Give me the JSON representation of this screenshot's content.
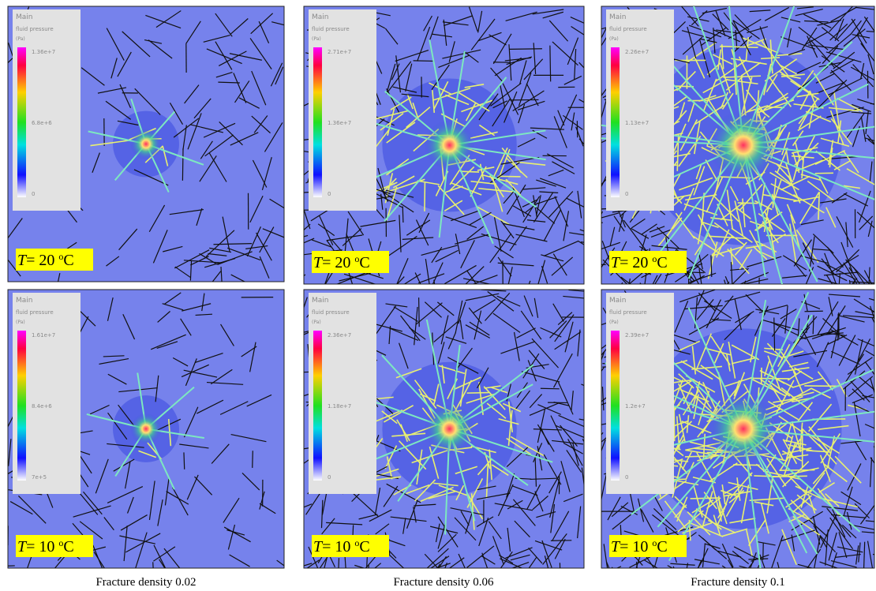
{
  "panels": [
    {
      "legend": {
        "title": "Main",
        "quantity": "fluid pressure",
        "unit": "(Pa)",
        "max": "1.36e+7",
        "mid": "6.8e+6",
        "min": "0"
      },
      "label": {
        "var": "T",
        "text": "= 20 ",
        "sup": "o",
        "unit": "C"
      }
    },
    {
      "legend": {
        "title": "Main",
        "quantity": "fluid pressure",
        "unit": "(Pa)",
        "max": "2.71e+7",
        "mid": "1.36e+7",
        "min": "0"
      },
      "label": {
        "var": "T",
        "text": "= 20 ",
        "sup": "o",
        "unit": "C"
      }
    },
    {
      "legend": {
        "title": "Main",
        "quantity": "fluid pressure",
        "unit": "(Pa)",
        "max": "2.26e+7",
        "mid": "1.13e+7",
        "min": "0"
      },
      "label": {
        "var": "T",
        "text": "= 20 ",
        "sup": "o",
        "unit": "C"
      }
    },
    {
      "legend": {
        "title": "Main",
        "quantity": "fluid pressure",
        "unit": "(Pa)",
        "max": "1.61e+7",
        "mid": "8.4e+6",
        "min": "7e+5"
      },
      "label": {
        "var": "T",
        "text": "= 10 ",
        "sup": "o",
        "unit": "C"
      }
    },
    {
      "legend": {
        "title": "Main",
        "quantity": "fluid pressure",
        "unit": "(Pa)",
        "max": "2.36e+7",
        "mid": "1.18e+7",
        "min": "0"
      },
      "label": {
        "var": "T",
        "text": "= 10 ",
        "sup": "o",
        "unit": "C"
      }
    },
    {
      "legend": {
        "title": "Main",
        "quantity": "fluid pressure",
        "unit": "(Pa)",
        "max": "2.39e+7",
        "mid": "1.2e+7",
        "min": "0"
      },
      "label": {
        "var": "T",
        "text": "= 10 ",
        "sup": "o",
        "unit": "C"
      }
    }
  ],
  "captions": [
    "Fracture density 0.02",
    "Fracture density 0.06",
    "Fracture density 0.1"
  ]
}
